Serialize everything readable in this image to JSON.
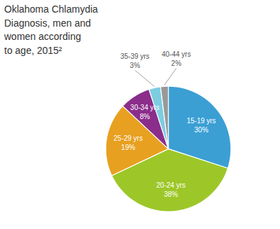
{
  "chart_data": {
    "type": "pie",
    "title": "Oklahoma Chlamydia\nDiagnosis, men and\nwomen according\nto age, 2015²",
    "categories": [
      "15-19 yrs",
      "20-24 yrs",
      "25-29 yrs",
      "30-34 yrs",
      "35-39 yrs",
      "40-44 yrs"
    ],
    "values": [
      30,
      38,
      19,
      8,
      3,
      2
    ],
    "value_labels": [
      "30%",
      "38%",
      "19%",
      "8%",
      "3%",
      "2%"
    ],
    "colors": [
      "#3B9FD4",
      "#9DC728",
      "#E8A020",
      "#8B2D8B",
      "#7DCDE0",
      "#999999"
    ],
    "data_labels": true
  }
}
